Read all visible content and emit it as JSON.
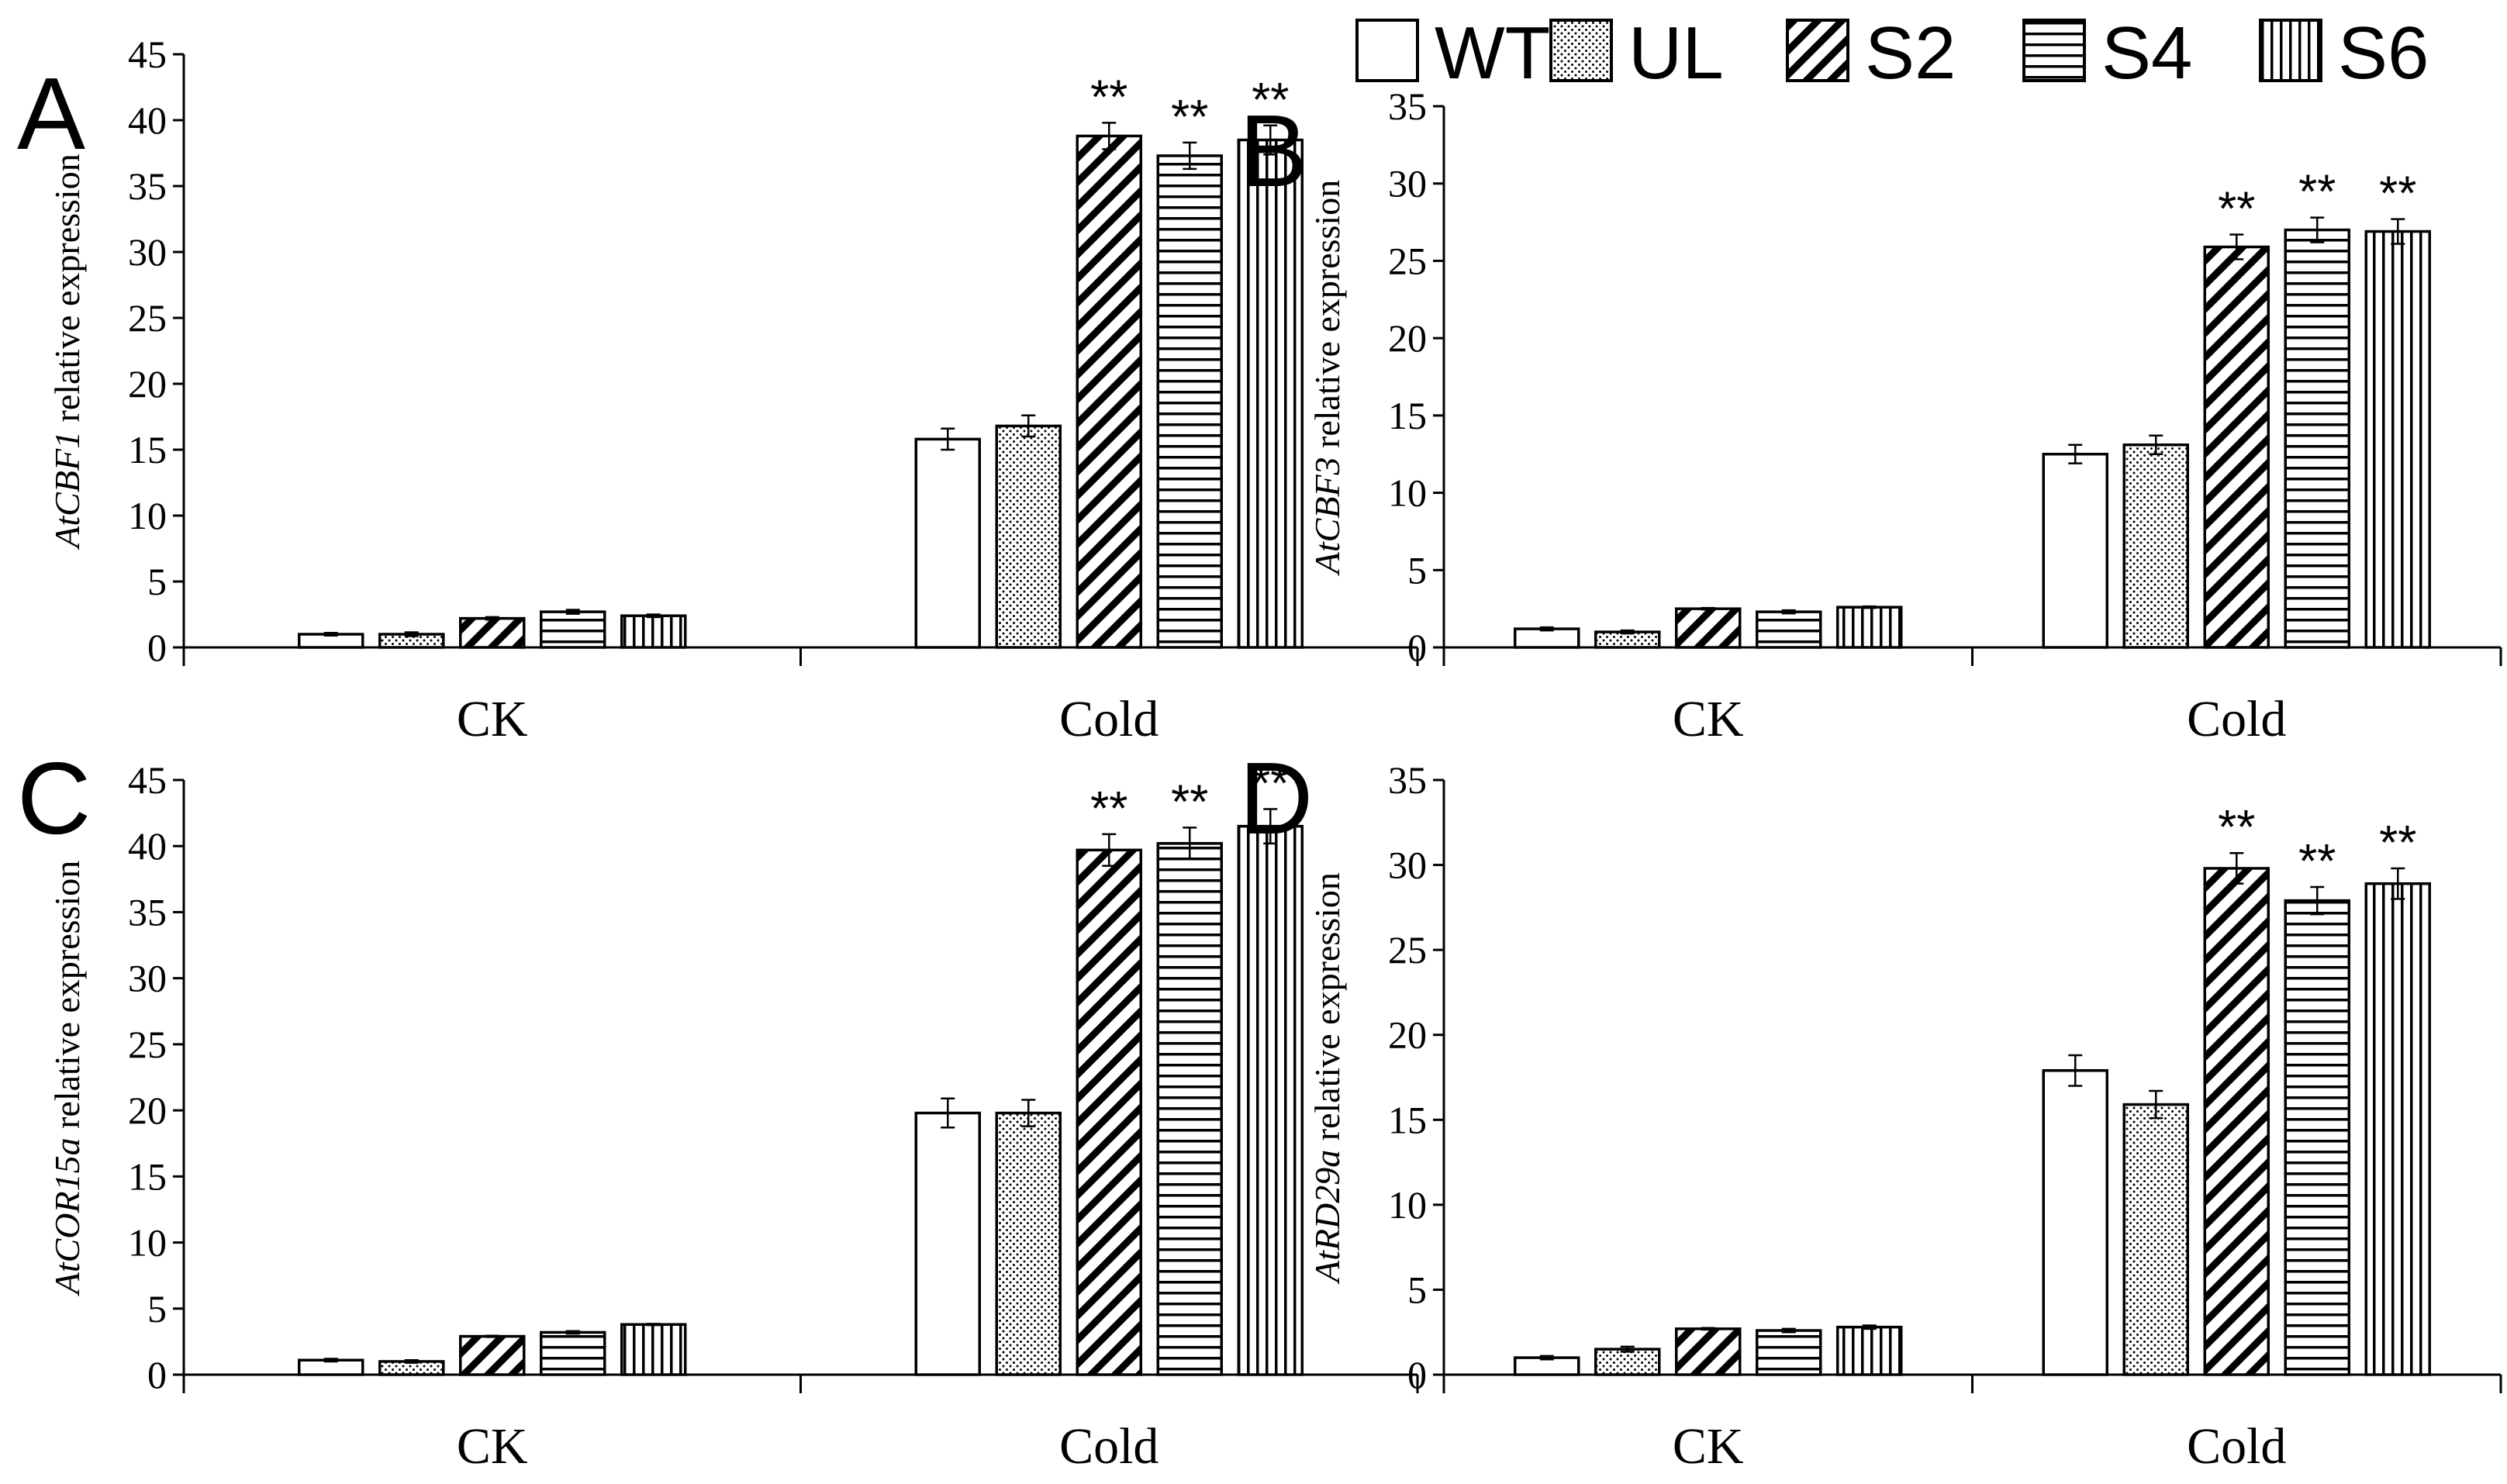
{
  "legend": {
    "entries": [
      {
        "label": "WT",
        "pattern": "white"
      },
      {
        "label": "UL",
        "pattern": "dots"
      },
      {
        "label": "S2",
        "pattern": "diag"
      },
      {
        "label": "S4",
        "pattern": "hlines"
      },
      {
        "label": "S6",
        "pattern": "vlines"
      }
    ]
  },
  "chart_data": [
    {
      "type": "bar",
      "panel": "A",
      "gene": "AtCBF1",
      "ylabel_suffix": " relative expression",
      "categories": [
        "CK",
        "Cold"
      ],
      "ylim": [
        0,
        45
      ],
      "yticks": [
        0,
        5,
        10,
        15,
        20,
        25,
        30,
        35,
        40,
        45
      ],
      "series": [
        {
          "name": "WT",
          "values": [
            1.0,
            15.8
          ],
          "errors": [
            0.1,
            0.8
          ],
          "sig": [
            "",
            ""
          ]
        },
        {
          "name": "UL",
          "values": [
            1.0,
            16.8
          ],
          "errors": [
            0.15,
            0.8
          ],
          "sig": [
            "",
            ""
          ]
        },
        {
          "name": "S2",
          "values": [
            2.2,
            38.8
          ],
          "errors": [
            0.1,
            1.0
          ],
          "sig": [
            "",
            "**"
          ]
        },
        {
          "name": "S4",
          "values": [
            2.7,
            37.3
          ],
          "errors": [
            0.15,
            1.0
          ],
          "sig": [
            "",
            "**"
          ]
        },
        {
          "name": "S6",
          "values": [
            2.4,
            38.5
          ],
          "errors": [
            0.1,
            1.1
          ],
          "sig": [
            "",
            "**"
          ]
        }
      ]
    },
    {
      "type": "bar",
      "panel": "B",
      "gene": "AtCBF3",
      "ylabel_suffix": " relative expression",
      "categories": [
        "CK",
        "Cold"
      ],
      "ylim": [
        0,
        35
      ],
      "yticks": [
        0,
        5,
        10,
        15,
        20,
        25,
        30,
        35
      ],
      "series": [
        {
          "name": "WT",
          "values": [
            1.2,
            12.5
          ],
          "errors": [
            0.1,
            0.6
          ],
          "sig": [
            "",
            ""
          ]
        },
        {
          "name": "UL",
          "values": [
            1.0,
            13.1
          ],
          "errors": [
            0.1,
            0.6
          ],
          "sig": [
            "",
            ""
          ]
        },
        {
          "name": "S2",
          "values": [
            2.5,
            25.9
          ],
          "errors": [
            0.05,
            0.8
          ],
          "sig": [
            "",
            "**"
          ]
        },
        {
          "name": "S4",
          "values": [
            2.3,
            27.0
          ],
          "errors": [
            0.1,
            0.8
          ],
          "sig": [
            "",
            "**"
          ]
        },
        {
          "name": "S6",
          "values": [
            2.6,
            26.9
          ],
          "errors": [
            0.05,
            0.8
          ],
          "sig": [
            "",
            "**"
          ]
        }
      ]
    },
    {
      "type": "bar",
      "panel": "C",
      "gene": "AtCOR15a",
      "ylabel_suffix": " relative expression",
      "categories": [
        "CK",
        "Cold"
      ],
      "ylim": [
        0,
        45
      ],
      "yticks": [
        0,
        5,
        10,
        15,
        20,
        25,
        30,
        35,
        40,
        45
      ],
      "series": [
        {
          "name": "WT",
          "values": [
            1.1,
            19.8
          ],
          "errors": [
            0.1,
            1.1
          ],
          "sig": [
            "",
            ""
          ]
        },
        {
          "name": "UL",
          "values": [
            1.0,
            19.8
          ],
          "errors": [
            0.1,
            1.0
          ],
          "sig": [
            "",
            ""
          ]
        },
        {
          "name": "S2",
          "values": [
            2.9,
            39.7
          ],
          "errors": [
            0.05,
            1.2
          ],
          "sig": [
            "",
            "**"
          ]
        },
        {
          "name": "S4",
          "values": [
            3.2,
            40.2
          ],
          "errors": [
            0.1,
            1.2
          ],
          "sig": [
            "",
            "**"
          ]
        },
        {
          "name": "S6",
          "values": [
            3.8,
            41.5
          ],
          "errors": [
            0.05,
            1.3
          ],
          "sig": [
            "",
            "**"
          ]
        }
      ]
    },
    {
      "type": "bar",
      "panel": "D",
      "gene": "AtRD29a",
      "ylabel_suffix": " relative expression",
      "categories": [
        "CK",
        "Cold"
      ],
      "ylim": [
        0,
        35
      ],
      "yticks": [
        0,
        5,
        10,
        15,
        20,
        25,
        30,
        35
      ],
      "series": [
        {
          "name": "WT",
          "values": [
            1.0,
            17.9
          ],
          "errors": [
            0.1,
            0.9
          ],
          "sig": [
            "",
            ""
          ]
        },
        {
          "name": "UL",
          "values": [
            1.5,
            15.9
          ],
          "errors": [
            0.15,
            0.8
          ],
          "sig": [
            "",
            ""
          ]
        },
        {
          "name": "S2",
          "values": [
            2.7,
            29.8
          ],
          "errors": [
            0.05,
            0.9
          ],
          "sig": [
            "",
            "**"
          ]
        },
        {
          "name": "S4",
          "values": [
            2.6,
            27.9
          ],
          "errors": [
            0.1,
            0.8
          ],
          "sig": [
            "",
            "**"
          ]
        },
        {
          "name": "S6",
          "values": [
            2.8,
            28.9
          ],
          "errors": [
            0.1,
            0.9
          ],
          "sig": [
            "",
            "**"
          ]
        }
      ]
    }
  ]
}
